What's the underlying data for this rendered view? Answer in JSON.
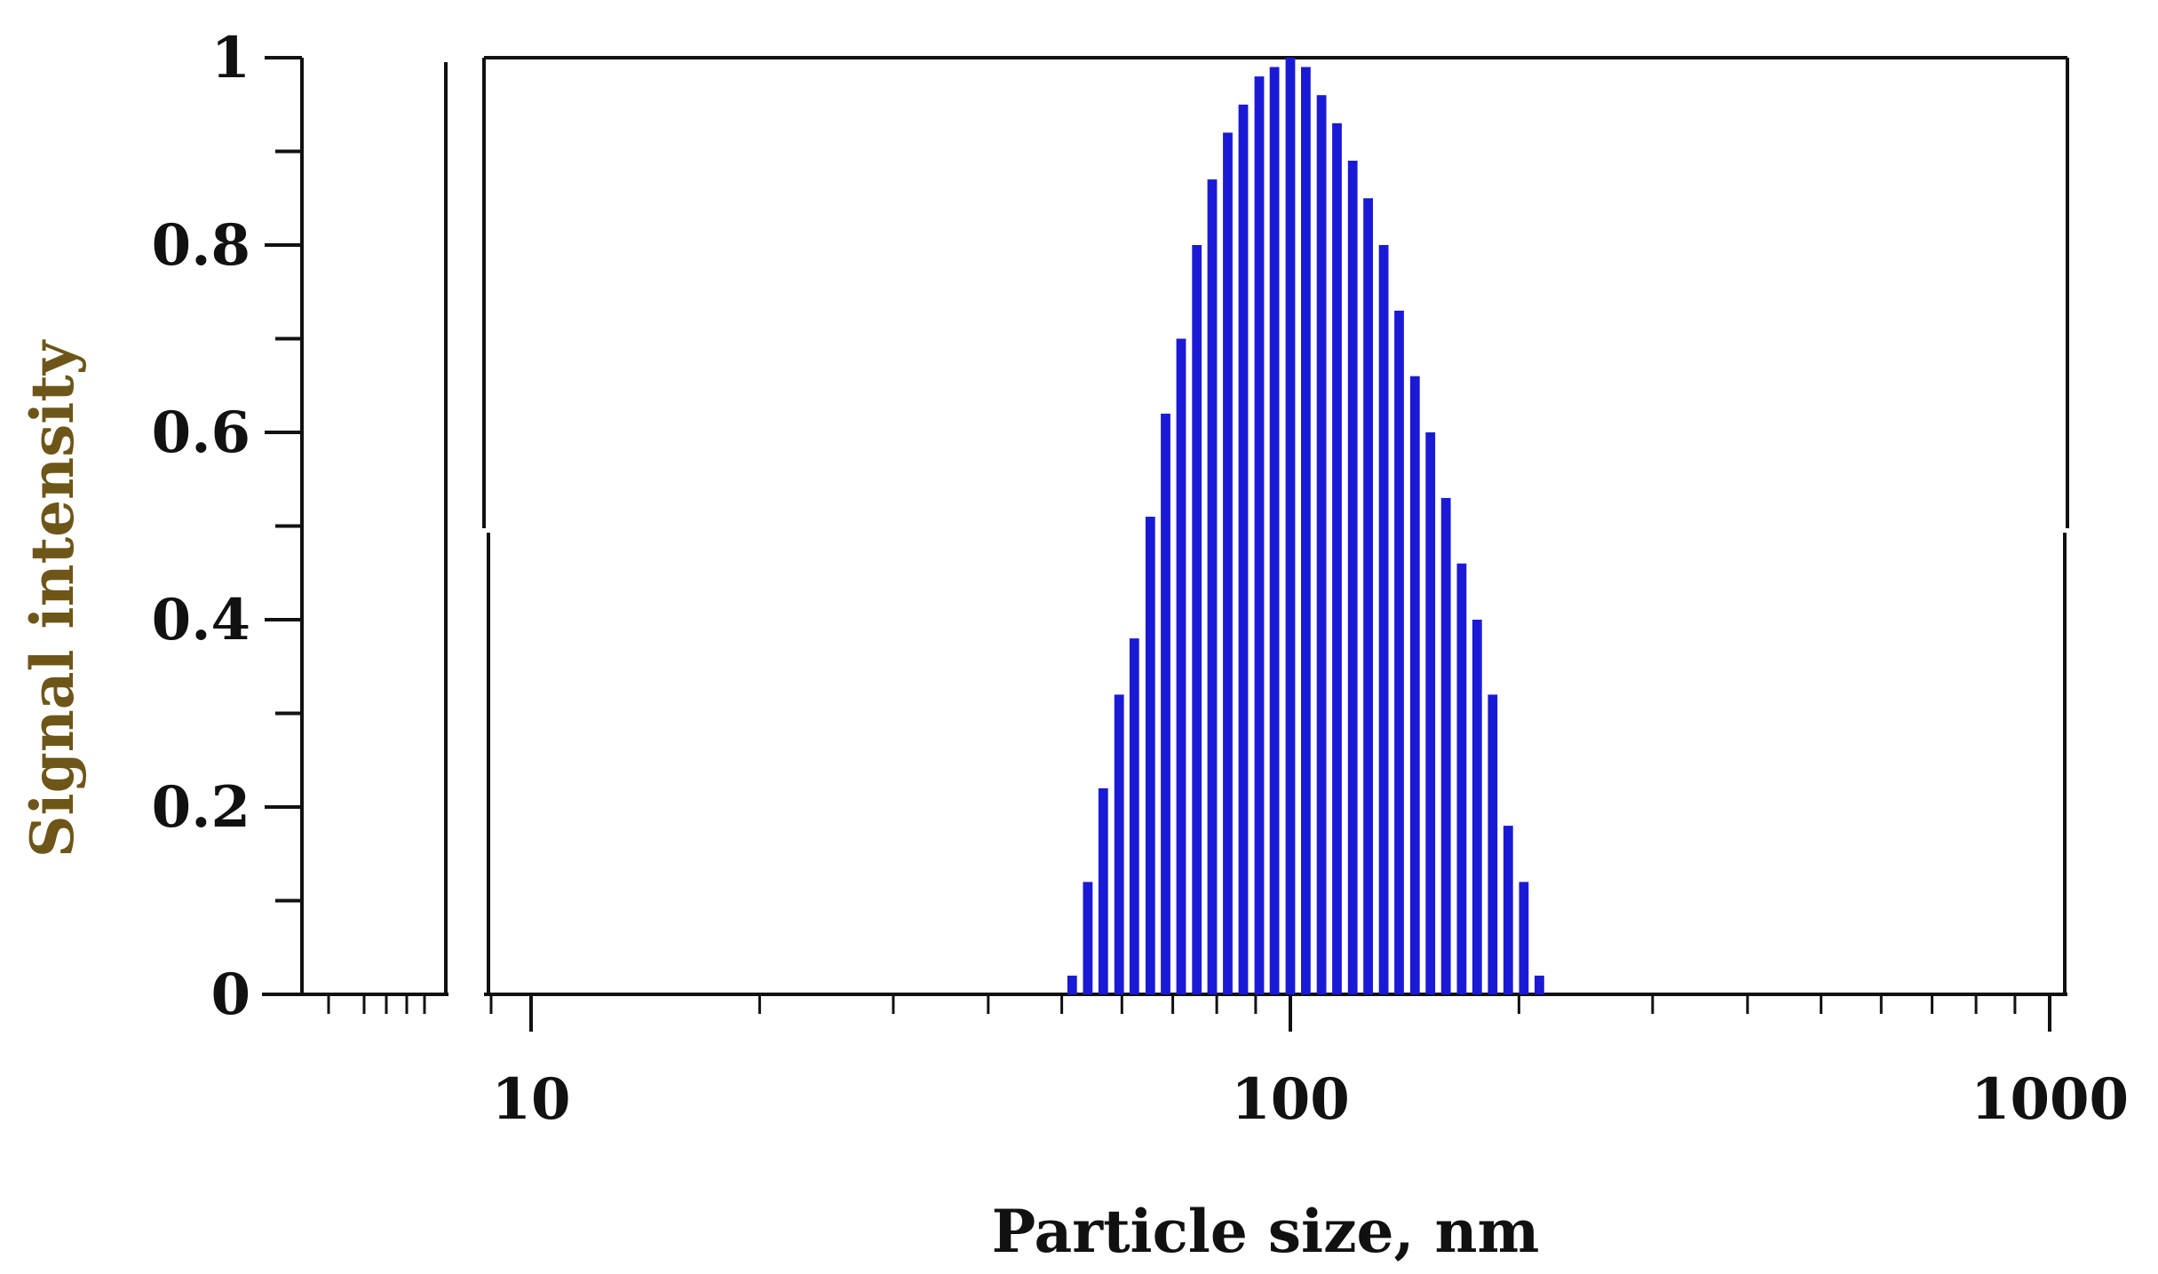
{
  "chart_data": {
    "type": "bar",
    "xlabel": "Particle size, nm",
    "ylabel": "Signal intensity",
    "x_scale": "log",
    "xlim": [
      8.5,
      1010
    ],
    "ylim": [
      0,
      1
    ],
    "x_tick_labels": [
      "10",
      "100",
      "1000"
    ],
    "y_tick_labels": [
      "0",
      "0.2",
      "0.4",
      "0.6",
      "0.8",
      "1"
    ],
    "grid": false,
    "legend": "none",
    "bar_color": "#1a1ad6",
    "x": [
      51.6,
      54.1,
      56.7,
      59.5,
      62.3,
      65.4,
      68.5,
      71.8,
      75.3,
      78.9,
      82.7,
      86.7,
      91.0,
      95.3,
      100.0,
      104.8,
      109.9,
      115.2,
      120.8,
      126.6,
      132.7,
      139.1,
      145.9,
      152.9,
      160.3,
      168.1,
      176.2,
      184.7,
      193.6,
      203.0,
      212.8
    ],
    "values": [
      0.02,
      0.12,
      0.22,
      0.32,
      0.38,
      0.51,
      0.62,
      0.7,
      0.8,
      0.87,
      0.92,
      0.95,
      0.98,
      0.99,
      1.0,
      0.99,
      0.96,
      0.93,
      0.89,
      0.85,
      0.8,
      0.73,
      0.66,
      0.6,
      0.53,
      0.46,
      0.4,
      0.32,
      0.18,
      0.12,
      0.02
    ]
  }
}
